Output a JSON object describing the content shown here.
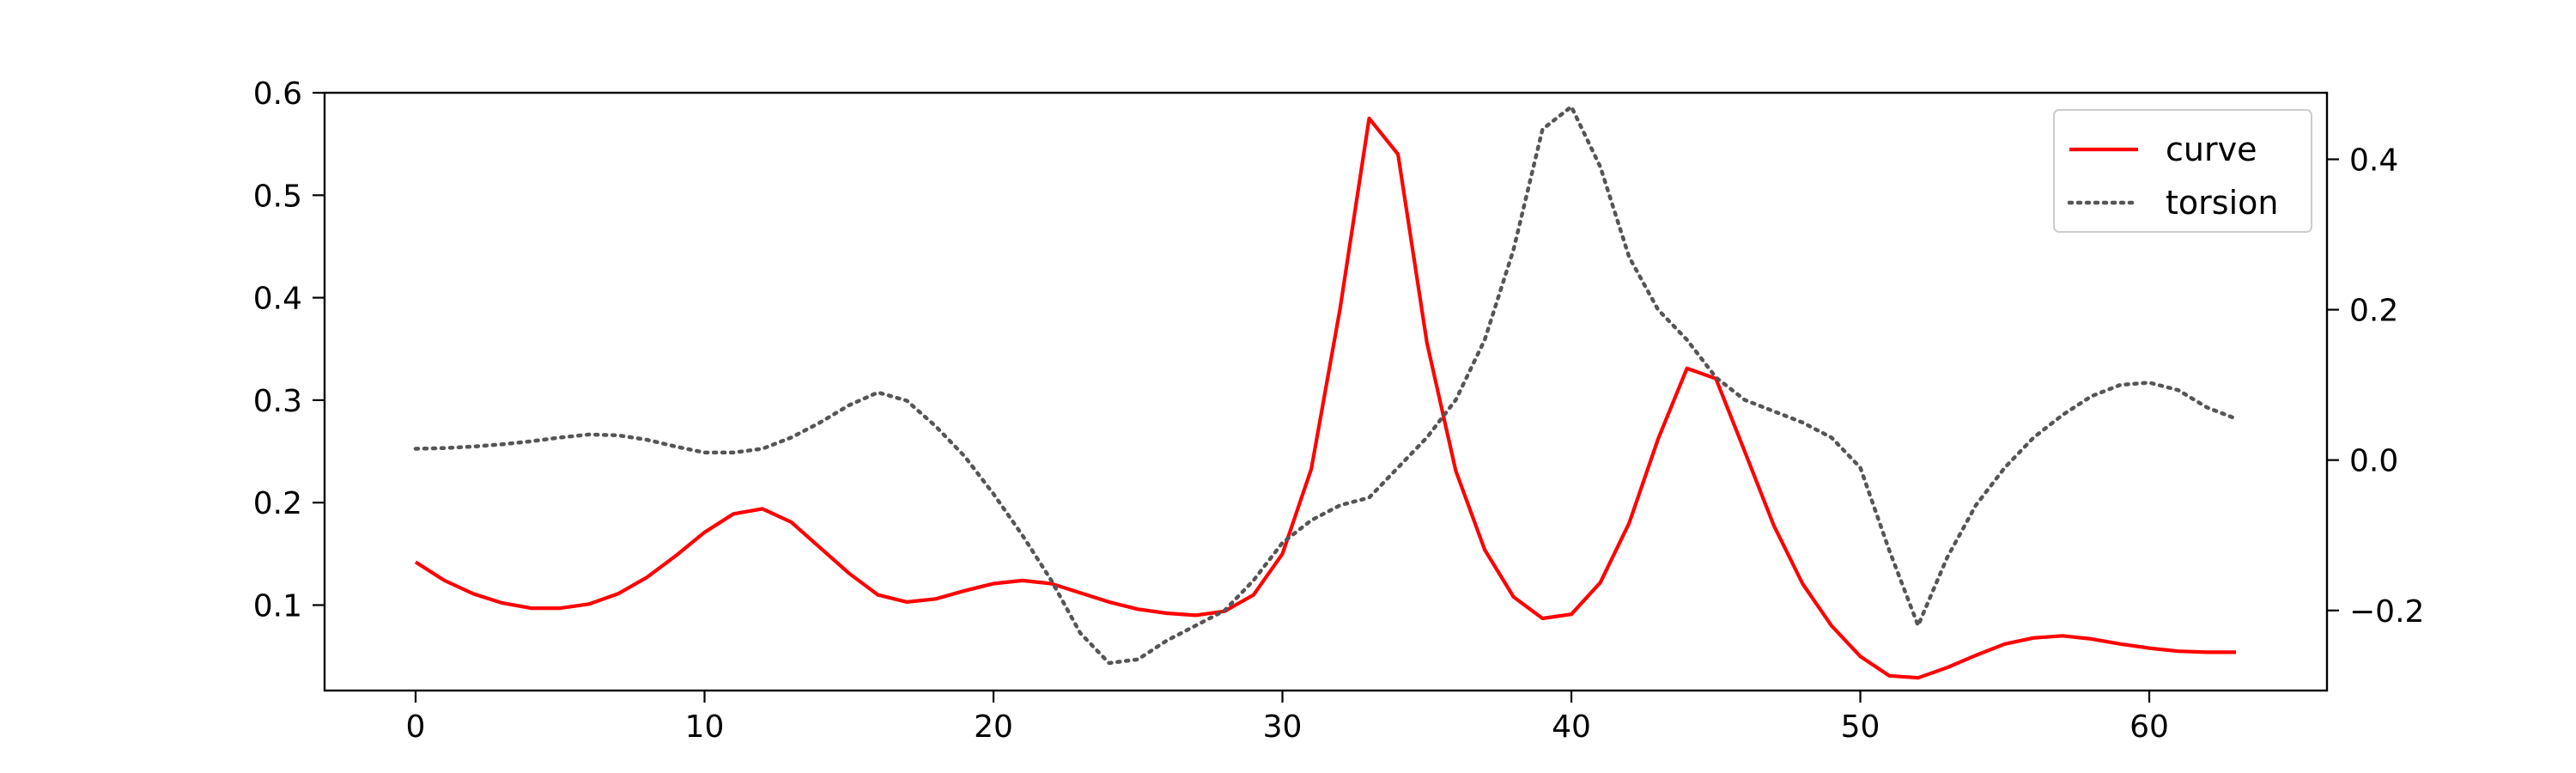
{
  "chart_data": {
    "type": "line",
    "title": "",
    "xlabel": "",
    "ylabel": "",
    "y2label": "",
    "grid": false,
    "legend_position": "top-right",
    "xlim": [
      -3.15,
      66.15
    ],
    "ylim": [
      0.0166,
      0.6
    ],
    "y2lim": [
      -0.3065,
      0.4885
    ],
    "x_ticks": [
      0,
      10,
      20,
      30,
      40,
      50,
      60
    ],
    "y_ticks": [
      0.1,
      0.2,
      0.3,
      0.4,
      0.5,
      0.6
    ],
    "y2_ticks": [
      -0.2,
      0.0,
      0.2,
      0.4
    ],
    "y_tick_labels": [
      "0.1",
      "0.2",
      "0.3",
      "0.4",
      "0.5",
      "0.6"
    ],
    "y2_tick_labels": [
      "−0.2",
      "0.0",
      "0.2",
      "0.4"
    ],
    "x_tick_labels": [
      "0",
      "10",
      "20",
      "30",
      "40",
      "50",
      "60"
    ],
    "series": [
      {
        "name": "curve",
        "axis": "left",
        "color": "#ff0000",
        "style": "solid",
        "x": [
          0,
          1,
          2,
          3,
          4,
          5,
          6,
          7,
          8,
          9,
          10,
          11,
          12,
          13,
          14,
          15,
          16,
          17,
          18,
          19,
          20,
          21,
          22,
          23,
          24,
          25,
          26,
          27,
          28,
          29,
          30,
          31,
          32,
          33,
          34,
          35,
          36,
          37,
          38,
          39,
          40,
          41,
          42,
          43,
          44,
          45,
          46,
          47,
          48,
          49,
          50,
          51,
          52,
          53,
          54,
          55,
          56,
          57,
          58,
          59,
          60,
          61,
          62,
          63
        ],
        "values": [
          0.142,
          0.124,
          0.111,
          0.102,
          0.097,
          0.097,
          0.101,
          0.111,
          0.127,
          0.148,
          0.171,
          0.189,
          0.194,
          0.181,
          0.156,
          0.131,
          0.11,
          0.103,
          0.106,
          0.114,
          0.121,
          0.124,
          0.121,
          0.112,
          0.103,
          0.096,
          0.092,
          0.09,
          0.094,
          0.11,
          0.15,
          0.233,
          0.39,
          0.575,
          0.54,
          0.356,
          0.231,
          0.154,
          0.108,
          0.087,
          0.091,
          0.122,
          0.18,
          0.262,
          0.331,
          0.321,
          0.25,
          0.178,
          0.121,
          0.08,
          0.05,
          0.031,
          0.029,
          0.039,
          0.051,
          0.062,
          0.068,
          0.07,
          0.067,
          0.062,
          0.058,
          0.055,
          0.054,
          0.054
        ]
      },
      {
        "name": "torsion",
        "axis": "right",
        "color": "#555555",
        "style": "dotted",
        "x": [
          0,
          1,
          2,
          3,
          4,
          5,
          6,
          7,
          8,
          9,
          10,
          11,
          12,
          13,
          14,
          15,
          16,
          17,
          18,
          19,
          20,
          21,
          22,
          23,
          24,
          25,
          26,
          27,
          28,
          29,
          30,
          31,
          32,
          33,
          34,
          35,
          36,
          37,
          38,
          39,
          40,
          41,
          42,
          43,
          44,
          45,
          46,
          47,
          48,
          49,
          50,
          51,
          52,
          53,
          54,
          55,
          56,
          57,
          58,
          59,
          60,
          61,
          62,
          63
        ],
        "values": [
          0.015,
          0.016,
          0.018,
          0.021,
          0.025,
          0.03,
          0.034,
          0.033,
          0.027,
          0.018,
          0.01,
          0.01,
          0.015,
          0.03,
          0.05,
          0.073,
          0.09,
          0.079,
          0.045,
          0.005,
          -0.045,
          -0.1,
          -0.16,
          -0.23,
          -0.27,
          -0.265,
          -0.24,
          -0.22,
          -0.2,
          -0.16,
          -0.11,
          -0.08,
          -0.06,
          -0.05,
          -0.01,
          0.03,
          0.08,
          0.16,
          0.28,
          0.44,
          0.47,
          0.39,
          0.27,
          0.2,
          0.16,
          0.11,
          0.08,
          0.065,
          0.05,
          0.03,
          -0.01,
          -0.12,
          -0.22,
          -0.13,
          -0.06,
          -0.01,
          0.03,
          0.06,
          0.085,
          0.1,
          0.103,
          0.093,
          0.07,
          0.055
        ]
      }
    ]
  }
}
